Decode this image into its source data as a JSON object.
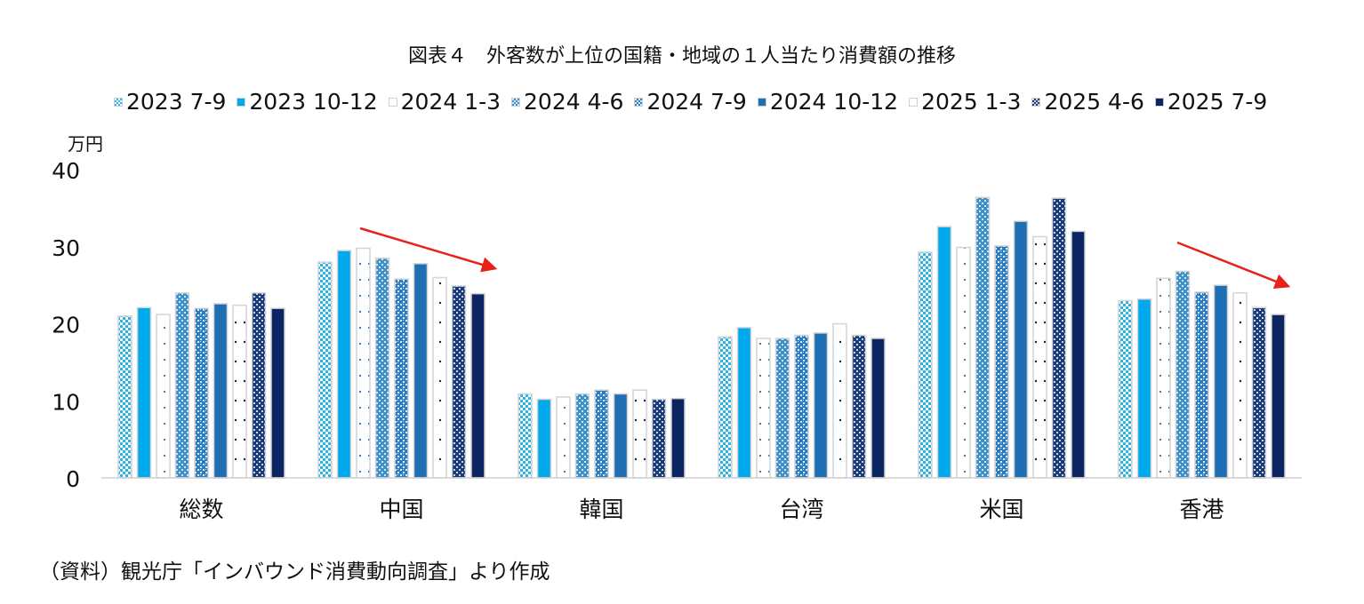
{
  "title": "図表４　外客数が上位の国籍・地域の１人当たり消費額の推移",
  "source": "（資料）観光庁「インバウンド消費動向調査」より作成",
  "colors": {
    "light_blue": "#29b3e8",
    "cyan": "#00a9ec",
    "white_bar": "#ffffff",
    "mid_blue": "#3f90c8",
    "blue": "#1f6fb5",
    "navy": "#0b2462",
    "axis": "#cfcfcf",
    "arrow": "#e8221b"
  },
  "chart_data": {
    "type": "bar",
    "ylabel": "万円",
    "ylim": [
      0,
      40
    ],
    "yticks": [
      0,
      10,
      20,
      30,
      40
    ],
    "categories": [
      "総数",
      "中国",
      "韓国",
      "台湾",
      "米国",
      "香港"
    ],
    "series": [
      {
        "name": "2023 7-9",
        "style": "dots-light",
        "values": [
          21.0,
          28.0,
          10.9,
          18.3,
          29.3,
          23.0
        ]
      },
      {
        "name": "2023 10-12",
        "style": "solid-cyan",
        "values": [
          22.1,
          29.5,
          10.2,
          19.5,
          32.6,
          23.2
        ]
      },
      {
        "name": "2024 1-3",
        "style": "white-dots",
        "values": [
          21.2,
          29.8,
          10.5,
          18.1,
          29.9,
          25.9
        ]
      },
      {
        "name": "2024 4-6",
        "style": "check-mid",
        "values": [
          24.0,
          28.5,
          10.9,
          18.1,
          36.4,
          26.8
        ]
      },
      {
        "name": "2024 7-9",
        "style": "cross-blue",
        "values": [
          22.0,
          25.8,
          11.4,
          18.5,
          30.1,
          24.1
        ]
      },
      {
        "name": "2024 10-12",
        "style": "solid-blue",
        "values": [
          22.6,
          27.8,
          10.9,
          18.8,
          33.3,
          25.0
        ]
      },
      {
        "name": "2025 1-3",
        "style": "white-dots2",
        "values": [
          22.4,
          26.0,
          11.4,
          20.0,
          31.3,
          24.0
        ]
      },
      {
        "name": "2025 4-6",
        "style": "check-navy",
        "values": [
          24.0,
          24.9,
          10.2,
          18.5,
          36.3,
          22.1
        ]
      },
      {
        "name": "2025 7-9",
        "style": "solid-navy",
        "values": [
          22.0,
          23.9,
          10.3,
          18.1,
          32.0,
          21.2
        ]
      }
    ],
    "grid": false,
    "legend_position": "top",
    "annotations": [
      {
        "type": "arrow",
        "category": "中国",
        "direction": "down-right"
      },
      {
        "type": "arrow",
        "category": "香港",
        "direction": "down-right"
      }
    ]
  }
}
